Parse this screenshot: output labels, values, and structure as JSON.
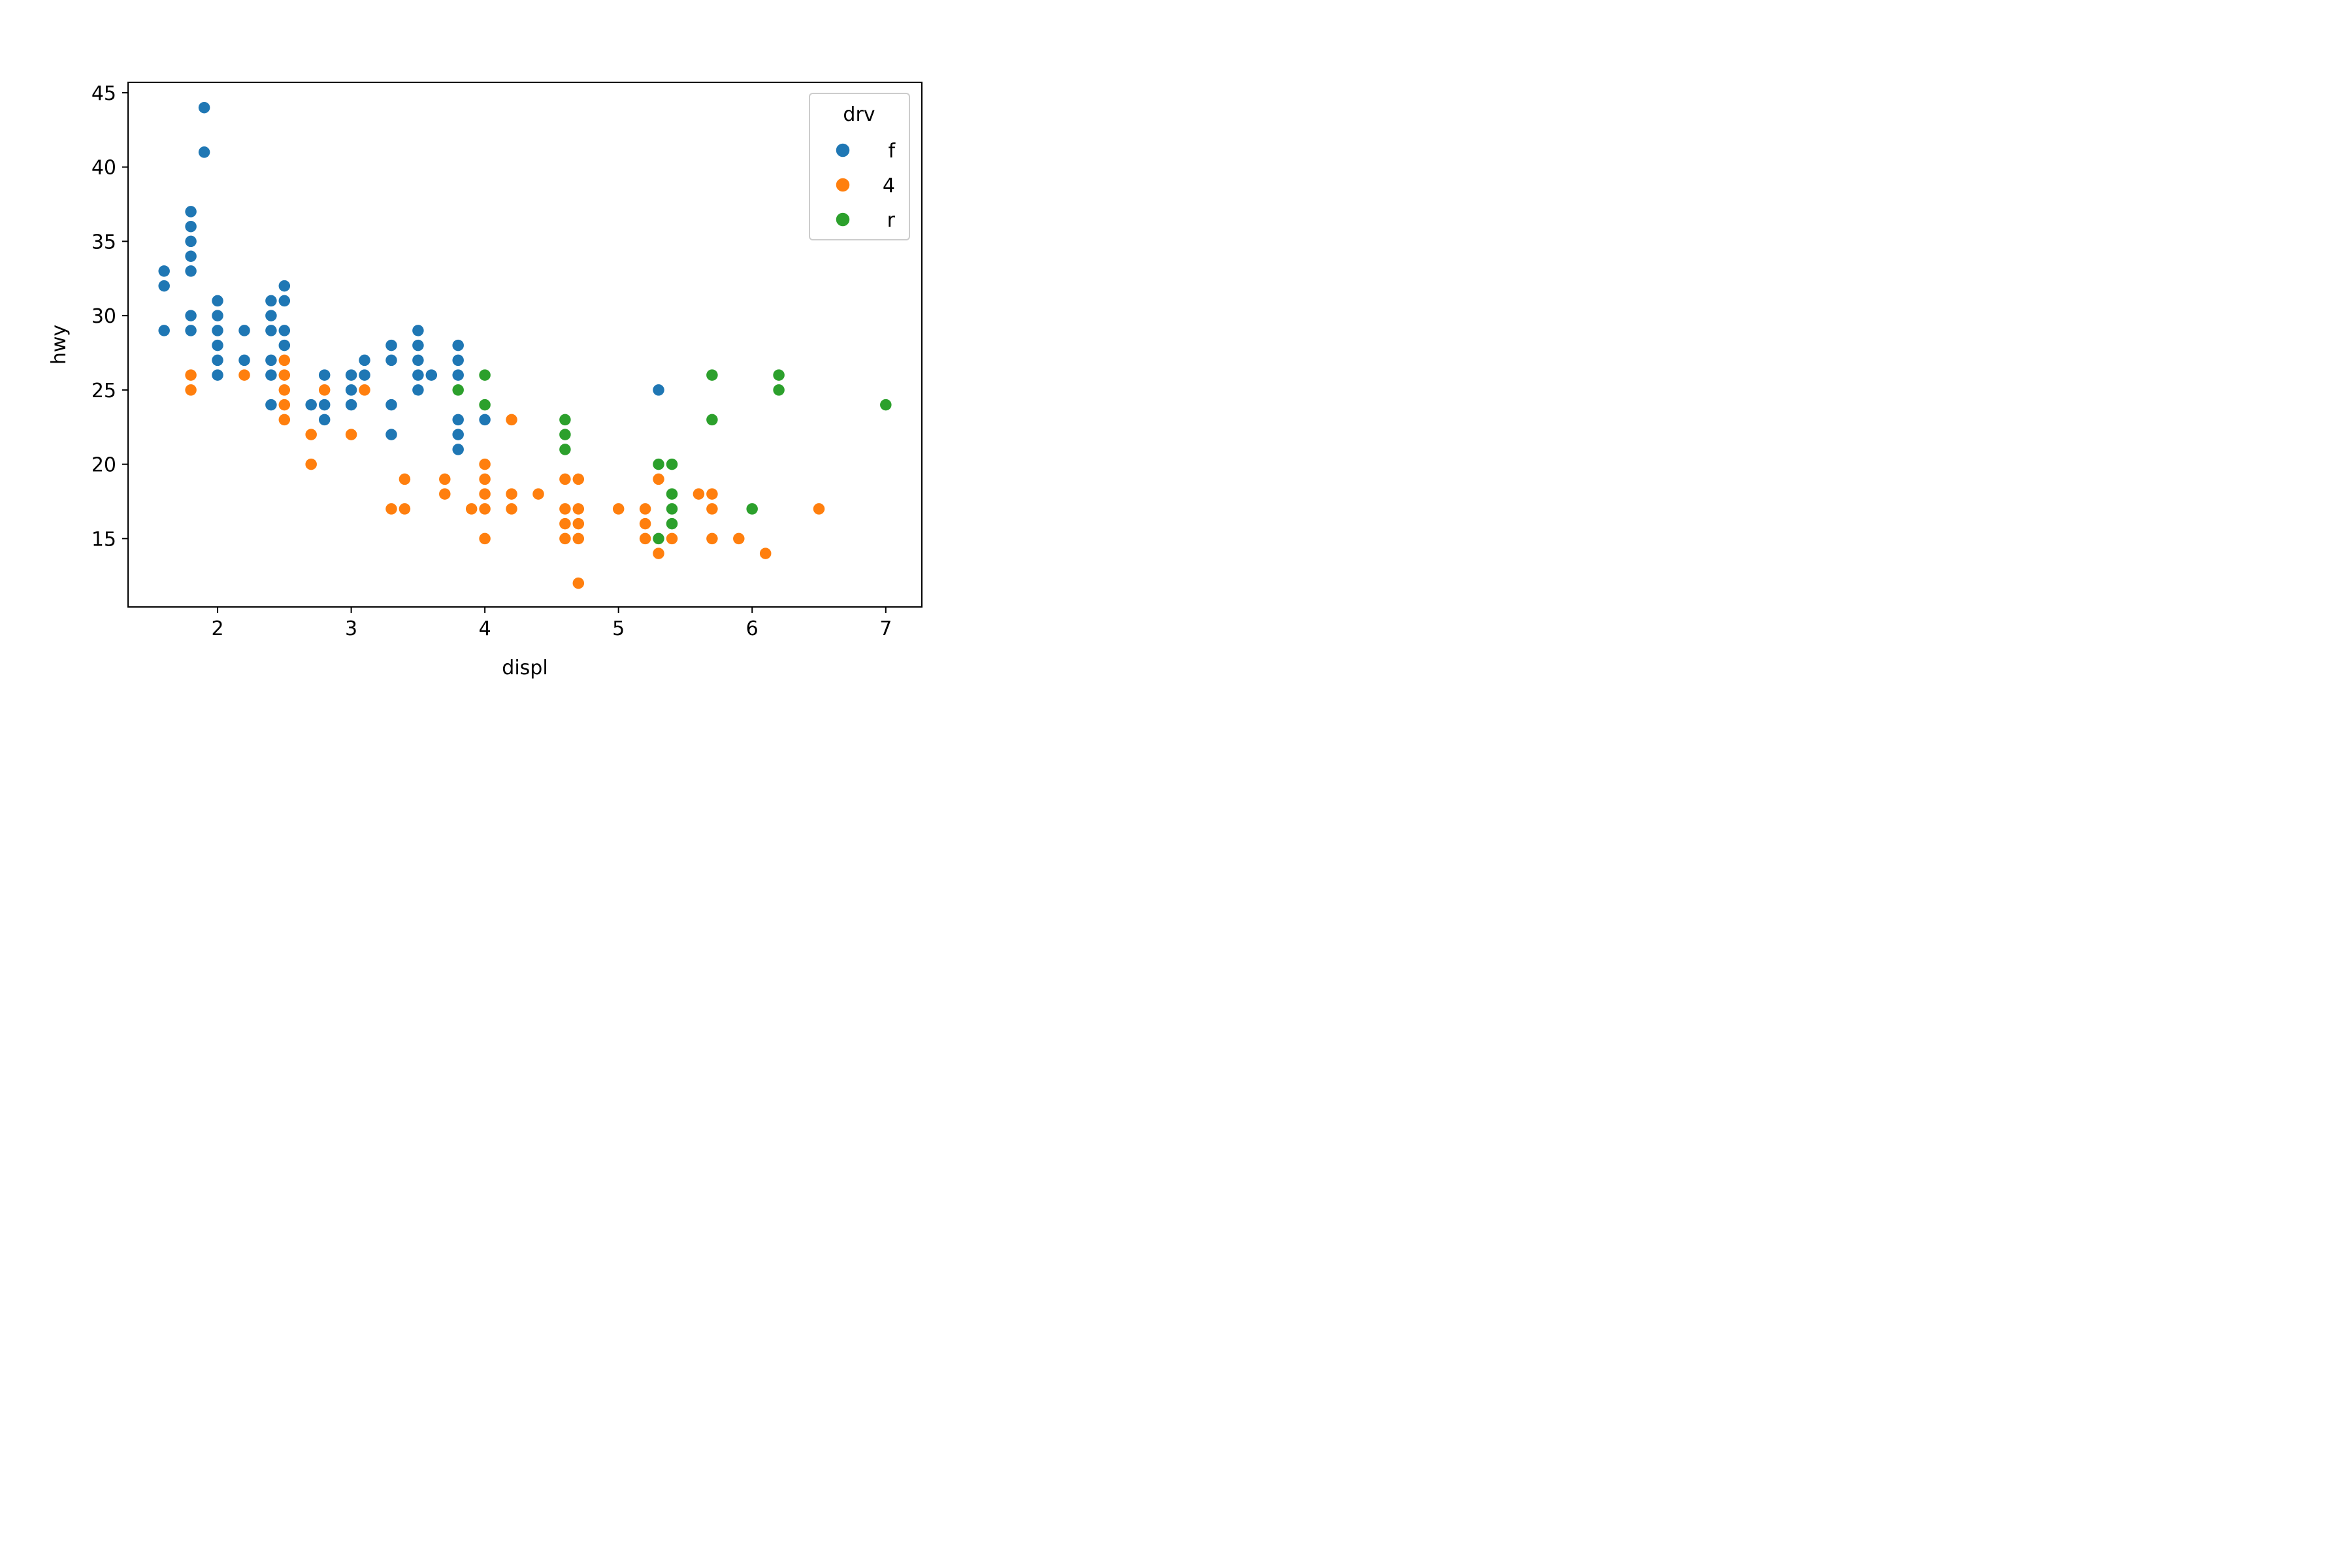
{
  "chart_data": {
    "type": "scatter",
    "title": "",
    "xlabel": "displ",
    "ylabel": "hwy",
    "xlim": [
      1.33,
      7.27
    ],
    "ylim": [
      10.4,
      45.7
    ],
    "xticks": [
      2,
      3,
      4,
      5,
      6,
      7
    ],
    "yticks": [
      15,
      20,
      25,
      30,
      35,
      40,
      45
    ],
    "grid": false,
    "legend": {
      "title": "drv",
      "placement": "top-right"
    },
    "series": [
      {
        "name": "f",
        "color": "#1f77b4",
        "points": [
          [
            1.6,
            33
          ],
          [
            1.6,
            32
          ],
          [
            1.6,
            29
          ],
          [
            1.8,
            37
          ],
          [
            1.8,
            36
          ],
          [
            1.8,
            35
          ],
          [
            1.8,
            34
          ],
          [
            1.8,
            33
          ],
          [
            1.8,
            30
          ],
          [
            1.8,
            29
          ],
          [
            1.9,
            44
          ],
          [
            1.9,
            41
          ],
          [
            2.0,
            31
          ],
          [
            2.0,
            30
          ],
          [
            2.0,
            29
          ],
          [
            2.0,
            28
          ],
          [
            2.0,
            27
          ],
          [
            2.0,
            26
          ],
          [
            2.2,
            29
          ],
          [
            2.2,
            27
          ],
          [
            2.4,
            31
          ],
          [
            2.4,
            30
          ],
          [
            2.4,
            29
          ],
          [
            2.4,
            27
          ],
          [
            2.4,
            26
          ],
          [
            2.4,
            24
          ],
          [
            2.5,
            32
          ],
          [
            2.5,
            31
          ],
          [
            2.5,
            29
          ],
          [
            2.5,
            28
          ],
          [
            2.7,
            24
          ],
          [
            2.8,
            26
          ],
          [
            2.8,
            24
          ],
          [
            2.8,
            23
          ],
          [
            3.0,
            26
          ],
          [
            3.0,
            25
          ],
          [
            3.0,
            24
          ],
          [
            3.1,
            27
          ],
          [
            3.1,
            26
          ],
          [
            3.3,
            28
          ],
          [
            3.3,
            27
          ],
          [
            3.3,
            24
          ],
          [
            3.3,
            22
          ],
          [
            3.5,
            29
          ],
          [
            3.5,
            28
          ],
          [
            3.5,
            27
          ],
          [
            3.5,
            26
          ],
          [
            3.5,
            25
          ],
          [
            3.6,
            26
          ],
          [
            3.8,
            28
          ],
          [
            3.8,
            27
          ],
          [
            3.8,
            26
          ],
          [
            3.8,
            23
          ],
          [
            3.8,
            22
          ],
          [
            3.8,
            21
          ],
          [
            4.0,
            23
          ],
          [
            5.3,
            25
          ]
        ]
      },
      {
        "name": "4",
        "color": "#ff7f0e",
        "points": [
          [
            1.8,
            26
          ],
          [
            1.8,
            25
          ],
          [
            2.2,
            26
          ],
          [
            2.5,
            27
          ],
          [
            2.5,
            26
          ],
          [
            2.5,
            25
          ],
          [
            2.5,
            24
          ],
          [
            2.5,
            23
          ],
          [
            2.7,
            22
          ],
          [
            2.7,
            20
          ],
          [
            2.8,
            25
          ],
          [
            3.0,
            22
          ],
          [
            3.1,
            25
          ],
          [
            3.3,
            17
          ],
          [
            3.4,
            19
          ],
          [
            3.4,
            17
          ],
          [
            3.7,
            19
          ],
          [
            3.7,
            18
          ],
          [
            3.9,
            17
          ],
          [
            4.0,
            20
          ],
          [
            4.0,
            19
          ],
          [
            4.0,
            18
          ],
          [
            4.0,
            17
          ],
          [
            4.0,
            15
          ],
          [
            4.2,
            23
          ],
          [
            4.2,
            18
          ],
          [
            4.2,
            17
          ],
          [
            4.4,
            18
          ],
          [
            4.6,
            19
          ],
          [
            4.6,
            17
          ],
          [
            4.6,
            16
          ],
          [
            4.6,
            15
          ],
          [
            4.7,
            19
          ],
          [
            4.7,
            17
          ],
          [
            4.7,
            16
          ],
          [
            4.7,
            15
          ],
          [
            4.7,
            12
          ],
          [
            5.0,
            17
          ],
          [
            5.2,
            17
          ],
          [
            5.2,
            16
          ],
          [
            5.2,
            15
          ],
          [
            5.3,
            19
          ],
          [
            5.3,
            14
          ],
          [
            5.4,
            15
          ],
          [
            5.6,
            18
          ],
          [
            5.7,
            18
          ],
          [
            5.7,
            17
          ],
          [
            5.7,
            15
          ],
          [
            5.9,
            15
          ],
          [
            6.1,
            14
          ],
          [
            6.5,
            17
          ]
        ]
      },
      {
        "name": "r",
        "color": "#2ca02c",
        "points": [
          [
            3.8,
            25
          ],
          [
            4.0,
            26
          ],
          [
            4.0,
            24
          ],
          [
            4.6,
            23
          ],
          [
            4.6,
            22
          ],
          [
            4.6,
            21
          ],
          [
            5.3,
            20
          ],
          [
            5.3,
            15
          ],
          [
            5.4,
            20
          ],
          [
            5.4,
            18
          ],
          [
            5.4,
            17
          ],
          [
            5.4,
            16
          ],
          [
            5.7,
            26
          ],
          [
            5.7,
            23
          ],
          [
            6.0,
            17
          ],
          [
            6.2,
            26
          ],
          [
            6.2,
            25
          ],
          [
            7.0,
            24
          ]
        ]
      }
    ]
  }
}
